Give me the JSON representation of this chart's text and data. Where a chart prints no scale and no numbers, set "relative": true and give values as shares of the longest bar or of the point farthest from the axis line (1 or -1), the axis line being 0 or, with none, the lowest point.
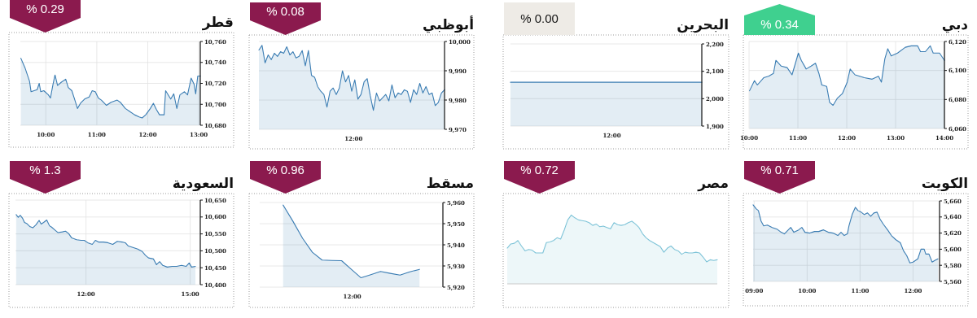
{
  "chart_data": [
    {
      "type": "area",
      "title": "دبي",
      "annotations": [
        "% 0.34"
      ],
      "color": "#3b7db3",
      "x": [
        10.01,
        10.11,
        10.17,
        10.3,
        10.4,
        10.5,
        10.55,
        10.66,
        10.78,
        10.88,
        10.95,
        11.01,
        11.07,
        11.17,
        11.27,
        11.36,
        11.43,
        11.49,
        11.59,
        11.65,
        11.72,
        11.81,
        11.91,
        12.01,
        12.07,
        12.17,
        12.36,
        12.52,
        12.65,
        12.71,
        12.78,
        12.84,
        12.91,
        13.04,
        13.2,
        13.32,
        13.45,
        13.51,
        13.61,
        13.71,
        13.77,
        13.9,
        14.0
      ],
      "values": [
        6086,
        6093,
        6090,
        6095,
        6096,
        6098,
        6107,
        6103,
        6102,
        6097,
        6105,
        6112,
        6107,
        6101,
        6103,
        6105,
        6098,
        6090,
        6089,
        6078,
        6076,
        6081,
        6084,
        6092,
        6101,
        6097,
        6095,
        6094,
        6096,
        6092,
        6108,
        6115,
        6110,
        6112,
        6116,
        6117,
        6117,
        6113,
        6113,
        6117,
        6112,
        6112,
        6107
      ],
      "xlim": [
        10,
        14
      ],
      "ylim": [
        6060,
        6120
      ],
      "xticks": [
        {
          "value": 10,
          "label": "10:00"
        },
        {
          "value": 11,
          "label": "11:00"
        },
        {
          "value": 12,
          "label": "12:00"
        },
        {
          "value": 13,
          "label": "13:00"
        },
        {
          "value": 14,
          "label": "14:00"
        }
      ],
      "yticks": [
        {
          "value": 6060,
          "label": "6,060"
        },
        {
          "value": 6080,
          "label": "6,080"
        },
        {
          "value": 6100,
          "label": "6,100"
        },
        {
          "value": 6120,
          "label": "6,120"
        }
      ],
      "grid": true
    },
    {
      "type": "area",
      "title": "البحرين",
      "annotations": [
        "% 0.00",
        "12:00"
      ],
      "color": "#3b7db3",
      "categories": [
        null,
        null,
        null,
        null,
        null,
        null
      ],
      "values": [
        2060,
        2060,
        2060,
        2060,
        2060,
        2060
      ],
      "ylim": [
        1900,
        2200
      ],
      "yticks": [
        {
          "value": 1900,
          "label": "1,900"
        },
        {
          "value": 2000,
          "label": "2,000"
        },
        {
          "value": 2100,
          "label": "2,100"
        },
        {
          "value": 2200,
          "label": "2,200"
        }
      ],
      "grid": "y"
    },
    {
      "type": "area",
      "title": "أبوظبي",
      "annotations": [
        "% 0.08",
        "12:00"
      ],
      "color": "#3b7db3",
      "categories": [
        null,
        null,
        null,
        null,
        null,
        null,
        null,
        null,
        null,
        null,
        null,
        null,
        null,
        null,
        null,
        null,
        null,
        null,
        null,
        null,
        null,
        null,
        null,
        null,
        null,
        null,
        null,
        null,
        null,
        null,
        null,
        null,
        null,
        null,
        null,
        null,
        null,
        null,
        null,
        null,
        null,
        null,
        null,
        null,
        null,
        null,
        null,
        null,
        null,
        null,
        null,
        null,
        null,
        null,
        null,
        null,
        null,
        null,
        null,
        null,
        null
      ],
      "values": [
        9997.1,
        9998.7,
        9992.7,
        9995.4,
        9993.8,
        9996.0,
        9994.9,
        9996.5,
        9996.0,
        9998.2,
        9995.4,
        9996.5,
        9994.4,
        9994.9,
        9996.9,
        9991.7,
        9996.9,
        9988.4,
        9987.8,
        9984.6,
        9983.0,
        9981.9,
        9977.6,
        9983.0,
        9984.1,
        9981.9,
        9984.1,
        9990.0,
        9986.2,
        9988.4,
        9983.0,
        9986.9,
        9980.3,
        9981.9,
        9986.2,
        9987.3,
        9981.4,
        9976.5,
        9982.4,
        9979.7,
        9980.8,
        9981.9,
        9979.7,
        9985.2,
        9980.8,
        9982.4,
        9981.9,
        9983.5,
        9983.0,
        9979.2,
        9983.5,
        9981.9,
        9985.7,
        9982.4,
        9984.6,
        9981.9,
        9982.4,
        9978.1,
        9979.2,
        9982.4,
        9983.5
      ],
      "ylim": [
        9970,
        10000
      ],
      "yticks": [
        {
          "value": 9970,
          "label": "9,970"
        },
        {
          "value": 9980,
          "label": "9,980"
        },
        {
          "value": 9990,
          "label": "9,990"
        },
        {
          "value": 10000,
          "label": "10,000"
        }
      ],
      "grid": "y"
    },
    {
      "type": "area",
      "title": "قطر",
      "annotations": [
        "% 0.29"
      ],
      "color": "#3b7db3",
      "x": [
        9.51,
        9.59,
        9.68,
        9.71,
        9.77,
        9.83,
        9.87,
        9.9,
        9.96,
        10.05,
        10.09,
        10.14,
        10.18,
        10.23,
        10.3,
        10.39,
        10.44,
        10.51,
        10.57,
        10.62,
        10.68,
        10.76,
        10.85,
        10.91,
        10.97,
        11.03,
        11.09,
        11.19,
        11.28,
        11.4,
        11.46,
        11.56,
        11.65,
        11.74,
        11.83,
        11.89,
        11.96,
        12.05,
        12.11,
        12.17,
        12.23,
        12.32,
        12.35,
        12.45,
        12.51,
        12.57,
        12.63,
        12.72,
        12.78,
        12.85,
        12.91,
        12.94,
        12.98,
        13.03
      ],
      "values": [
        10744,
        10735,
        10722,
        10712,
        10713,
        10714,
        10720,
        10712,
        10713,
        10709,
        10706,
        10719,
        10728,
        10718,
        10721,
        10724,
        10716,
        10713,
        10704,
        10696,
        10701,
        10705,
        10707,
        10713,
        10712,
        10706,
        10704,
        10699,
        10702,
        10704,
        10702,
        10696,
        10693,
        10690,
        10688,
        10687,
        10690,
        10696,
        10701,
        10695,
        10690,
        10690,
        10713,
        10705,
        10710,
        10696,
        10709,
        10712,
        10709,
        10725,
        10719,
        10710,
        10727,
        10727
      ],
      "xlim": [
        9.5,
        13.03
      ],
      "ylim": [
        10680,
        10760
      ],
      "xticks": [
        {
          "value": 10,
          "label": "10:00"
        },
        {
          "value": 11,
          "label": "11:00"
        },
        {
          "value": 12,
          "label": "12:00"
        },
        {
          "value": 13,
          "label": "13:00"
        }
      ],
      "yticks": [
        {
          "value": 10680,
          "label": "10,680"
        },
        {
          "value": 10700,
          "label": "10,700"
        },
        {
          "value": 10720,
          "label": "10,720"
        },
        {
          "value": 10740,
          "label": "10,740"
        },
        {
          "value": 10760,
          "label": "10,760"
        }
      ],
      "grid": true
    },
    {
      "type": "area",
      "title": "الكويت",
      "annotations": [
        "% 0.71"
      ],
      "color": "#3b7db3",
      "x": [
        8.98,
        9.04,
        9.08,
        9.13,
        9.18,
        9.25,
        9.34,
        9.43,
        9.51,
        9.57,
        9.63,
        9.69,
        9.75,
        9.84,
        9.9,
        9.96,
        10.05,
        10.14,
        10.22,
        10.31,
        10.4,
        10.49,
        10.58,
        10.64,
        10.7,
        10.76,
        10.79,
        10.85,
        10.91,
        10.96,
        11.02,
        11.08,
        11.14,
        11.2,
        11.26,
        11.32,
        11.38,
        11.44,
        11.53,
        11.59,
        11.67,
        11.76,
        11.82,
        11.88,
        11.94,
        12.0,
        12.09,
        12.15,
        12.21,
        12.24,
        12.3,
        12.36,
        12.41,
        12.47
      ],
      "values": [
        5655,
        5650,
        5648,
        5635,
        5629,
        5630,
        5627,
        5625,
        5621,
        5619,
        5623,
        5627,
        5621,
        5624,
        5627,
        5621,
        5620,
        5622,
        5622,
        5624,
        5621,
        5620,
        5617,
        5621,
        5617,
        5619,
        5629,
        5643,
        5652,
        5648,
        5646,
        5643,
        5645,
        5641,
        5645,
        5646,
        5637,
        5631,
        5623,
        5617,
        5612,
        5608,
        5598,
        5592,
        5583,
        5584,
        5588,
        5600,
        5600,
        5594,
        5594,
        5584,
        5586,
        5588
      ],
      "xlim": [
        8.98,
        12.5
      ],
      "ylim": [
        5560,
        5660
      ],
      "xticks": [
        {
          "value": 9,
          "label": "09:00"
        },
        {
          "value": 10,
          "label": "10:00"
        },
        {
          "value": 11,
          "label": "11:00"
        },
        {
          "value": 12,
          "label": "12:00"
        }
      ],
      "yticks": [
        {
          "value": 5560,
          "label": "5,560"
        },
        {
          "value": 5580,
          "label": "5,580"
        },
        {
          "value": 5600,
          "label": "5,600"
        },
        {
          "value": 5620,
          "label": "5,620"
        },
        {
          "value": 5640,
          "label": "5,640"
        },
        {
          "value": 5660,
          "label": "5,660"
        }
      ],
      "grid": true
    },
    {
      "type": "area",
      "title": "مصر",
      "annotations": [
        "% 0.72"
      ],
      "color": "#7fc4d8",
      "relative": true,
      "categories": [
        null,
        null,
        null,
        null,
        null,
        null,
        null,
        null,
        null,
        null,
        null,
        null,
        null,
        null,
        null,
        null,
        null,
        null,
        null,
        null,
        null,
        null,
        null,
        null,
        null,
        null,
        null,
        null,
        null,
        null,
        null,
        null,
        null,
        null,
        null,
        null,
        null,
        null,
        null,
        null,
        null,
        null,
        null,
        null,
        null,
        null,
        null,
        null,
        null,
        null,
        null,
        null,
        null,
        null,
        null,
        null,
        null,
        null,
        null,
        null
      ],
      "values": [
        0.52,
        0.58,
        0.59,
        0.63,
        0.55,
        0.48,
        0.5,
        0.49,
        0.45,
        0.45,
        0.45,
        0.6,
        0.61,
        0.63,
        0.67,
        0.65,
        0.78,
        0.93,
        1,
        0.96,
        0.93,
        0.92,
        0.91,
        0.89,
        0.85,
        0.87,
        0.83,
        0.84,
        0.82,
        0.8,
        0.89,
        0.86,
        0.85,
        0.86,
        0.89,
        0.91,
        0.87,
        0.82,
        0.73,
        0.67,
        0.63,
        0.6,
        0.57,
        0.54,
        0.46,
        0.52,
        0.55,
        0.5,
        0.48,
        0.43,
        0.46,
        0.45,
        0.45,
        0.46,
        0.45,
        0.39,
        0.32,
        0.35,
        0.34,
        0.35
      ]
    },
    {
      "type": "area",
      "title": "مسقط",
      "annotations": [
        "% 0.96",
        "12:00"
      ],
      "color": "#3b7db3",
      "categories": [
        null,
        null,
        null,
        null,
        null,
        null,
        null,
        null,
        null,
        null,
        null,
        null,
        null,
        null,
        null
      ],
      "values": [
        5958.8,
        5951.2,
        5943.1,
        5936.5,
        5932.8,
        5932.6,
        5932.5,
        5928.4,
        5924.4,
        5925.9,
        5927.4,
        5926.5,
        5925.7,
        5927.2,
        5928.4
      ],
      "ylim": [
        5920,
        5960
      ],
      "yticks": [
        {
          "value": 5920,
          "label": "5,920"
        },
        {
          "value": 5930,
          "label": "5,930"
        },
        {
          "value": 5940,
          "label": "5,940"
        },
        {
          "value": 5950,
          "label": "5,950"
        },
        {
          "value": 5960,
          "label": "5,960"
        }
      ],
      "grid": "y"
    },
    {
      "type": "area",
      "title": "السعودية",
      "annotations": [
        "% 1.3"
      ],
      "color": "#3b7db3",
      "x": [
        9.99,
        10.05,
        10.11,
        10.17,
        10.23,
        10.29,
        10.38,
        10.47,
        10.56,
        10.65,
        10.71,
        10.78,
        10.87,
        10.95,
        11.01,
        11.1,
        11.19,
        11.32,
        11.41,
        11.5,
        11.59,
        11.73,
        11.86,
        11.95,
        12.05,
        12.18,
        12.27,
        12.36,
        12.5,
        12.63,
        12.77,
        12.9,
        13.04,
        13.13,
        13.22,
        13.35,
        13.49,
        13.62,
        13.71,
        13.8,
        13.94,
        14.03,
        14.12,
        14.21,
        14.34,
        14.48,
        14.61,
        14.75,
        14.88,
        14.97,
        15.04,
        15.15
      ],
      "values": [
        10607,
        10599,
        10605,
        10597,
        10584,
        10581,
        10572,
        10568,
        10577,
        10590,
        10579,
        10584,
        10591,
        10574,
        10570,
        10562,
        10554,
        10556,
        10558,
        10551,
        10538,
        10533,
        10531,
        10531,
        10524,
        10519,
        10531,
        10526,
        10526,
        10524,
        10519,
        10528,
        10526,
        10524,
        10514,
        10510,
        10505,
        10498,
        10487,
        10479,
        10476,
        10459,
        10468,
        10457,
        10452,
        10454,
        10454,
        10457,
        10454,
        10464,
        10452,
        10454
      ],
      "xlim": [
        9.97,
        15.29
      ],
      "ylim": [
        10400,
        10650
      ],
      "xticks": [
        {
          "value": 12,
          "label": "12:00"
        },
        {
          "value": 15,
          "label": "15:00"
        }
      ],
      "yticks": [
        {
          "value": 10400,
          "label": "10,400"
        },
        {
          "value": 10450,
          "label": "10,450"
        },
        {
          "value": 10500,
          "label": "10,500"
        },
        {
          "value": 10550,
          "label": "10,550"
        },
        {
          "value": 10600,
          "label": "10,600"
        },
        {
          "value": 10650,
          "label": "10,650"
        }
      ],
      "grid": true
    }
  ]
}
